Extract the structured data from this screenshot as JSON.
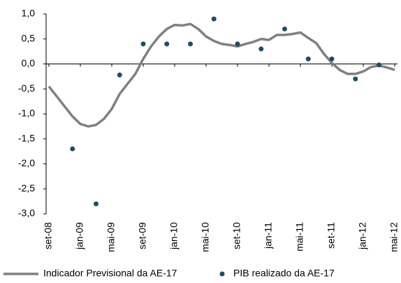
{
  "chart_data": {
    "type": "line",
    "categories": [
      "set-08",
      null,
      null,
      null,
      "jan-09",
      null,
      null,
      null,
      "mai-09",
      null,
      null,
      null,
      "set-09",
      null,
      null,
      null,
      "jan-10",
      null,
      null,
      null,
      "mai-10",
      null,
      null,
      null,
      "set-10",
      null,
      null,
      null,
      "jan-11",
      null,
      null,
      null,
      "mai-11",
      null,
      null,
      null,
      "set-11",
      null,
      null,
      null,
      "jan-12",
      null,
      null,
      null,
      "mai-12"
    ],
    "series": [
      {
        "name": "Indicador Previsional da AE-17",
        "type": "line",
        "color": "#808080",
        "values": [
          -0.45,
          -0.65,
          -0.85,
          -1.05,
          -1.2,
          -1.25,
          -1.22,
          -1.1,
          -0.9,
          -0.6,
          -0.4,
          -0.2,
          0.1,
          0.35,
          0.55,
          0.7,
          0.78,
          0.77,
          0.8,
          0.7,
          0.55,
          0.46,
          0.4,
          0.38,
          0.35,
          0.4,
          0.44,
          0.5,
          0.48,
          0.58,
          0.58,
          0.6,
          0.63,
          0.52,
          0.42,
          0.2,
          0.02,
          -0.12,
          -0.2,
          -0.2,
          -0.15,
          -0.06,
          -0.03,
          -0.07,
          -0.12
        ]
      },
      {
        "name": "PIB realizado da AE-17",
        "type": "scatter",
        "color": "#1b4f63",
        "values": [
          null,
          null,
          null,
          -1.7,
          null,
          null,
          -2.8,
          null,
          null,
          -0.22,
          null,
          null,
          0.4,
          null,
          null,
          0.4,
          null,
          null,
          0.4,
          null,
          null,
          0.9,
          null,
          null,
          0.4,
          null,
          null,
          0.3,
          null,
          null,
          0.7,
          null,
          null,
          0.1,
          null,
          null,
          0.1,
          null,
          null,
          -0.3,
          null,
          null,
          -0.02,
          null,
          null
        ]
      }
    ],
    "ylim": [
      -3,
      1
    ],
    "yticks": [
      {
        "value": -3,
        "label": "-3,0"
      },
      {
        "value": -2.5,
        "label": "-2,5"
      },
      {
        "value": -2,
        "label": "-2,0"
      },
      {
        "value": -1.5,
        "label": "-1,5"
      },
      {
        "value": -1,
        "label": "-1,0"
      },
      {
        "value": -0.5,
        "label": "-0,5"
      },
      {
        "value": 0,
        "label": "0,0"
      },
      {
        "value": 0.5,
        "label": "0,5"
      },
      {
        "value": 1,
        "label": "1,0"
      }
    ],
    "legend": "bottom"
  }
}
